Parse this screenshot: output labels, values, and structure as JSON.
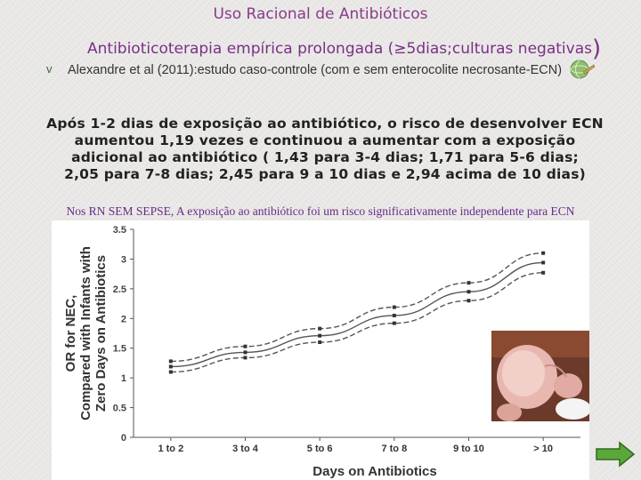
{
  "slide": {
    "title": "Uso Racional de Antibióticos",
    "subtitle": "Antibioticoterapia empírica prolongada (≥5dias;culturas negativas",
    "subtitle_close": ")",
    "bullet_marker": "v",
    "bullet_text": "Alexandre et al (2011):estudo caso-controle (com e sem enterocolite necrosante-ECN)",
    "finding_lines": [
      "Após 1-2 dias de exposição ao antibiótico, o risco de desenvolver ECN",
      "aumentou 1,19 vezes e continuou a aumentar com a exposição",
      "adicional ao antibiótico ( 1,43 para 3-4 dias; 1,71 para 5-6 dias;",
      "2,05 para 7-8 dias; 2,45 para 9 a 10 dias e 2,94 acima de 10 dias)"
    ],
    "note": "Nos RN SEM SEPSE, A exposição ao antibiótico foi um risco significativamente independente para ECN"
  },
  "icons": {
    "bullet": "checkmark-bullet-icon",
    "globe": "globe-icon",
    "next": "right-arrow-icon"
  },
  "colors": {
    "title": "#8a3a8a",
    "subtitle": "#7b2f86",
    "note": "#6a2a8a",
    "arrow": "#5aa83a"
  },
  "chart_data": {
    "type": "line",
    "categories": [
      "1 to 2",
      "3 to 4",
      "5 to 6",
      "7 to 8",
      "9 to 10",
      "> 10"
    ],
    "series": [
      {
        "name": "",
        "style": "solid",
        "values": [
          1.19,
          1.43,
          1.71,
          2.05,
          2.45,
          2.94
        ]
      },
      {
        "name": "",
        "style": "dashed",
        "values": [
          1.28,
          1.53,
          1.83,
          2.19,
          2.6,
          3.1
        ]
      },
      {
        "name": "",
        "style": "dashed",
        "values": [
          1.1,
          1.34,
          1.6,
          1.92,
          2.3,
          2.77
        ]
      }
    ],
    "title": "",
    "xlabel": "Days on Antibiotics",
    "ylabel": "OR for NEC, Compared with Infants with Zero Days on Antibiotics",
    "ylabel_lines": [
      "OR for NEC,",
      "Compared with Infants with",
      "Zero Days on Antibiotics"
    ],
    "ylim": [
      0,
      3.5
    ],
    "yticks": [
      "0",
      "0.5",
      "1",
      "1.5",
      "2",
      "2.5",
      "3",
      "3.5"
    ],
    "grid": false
  }
}
